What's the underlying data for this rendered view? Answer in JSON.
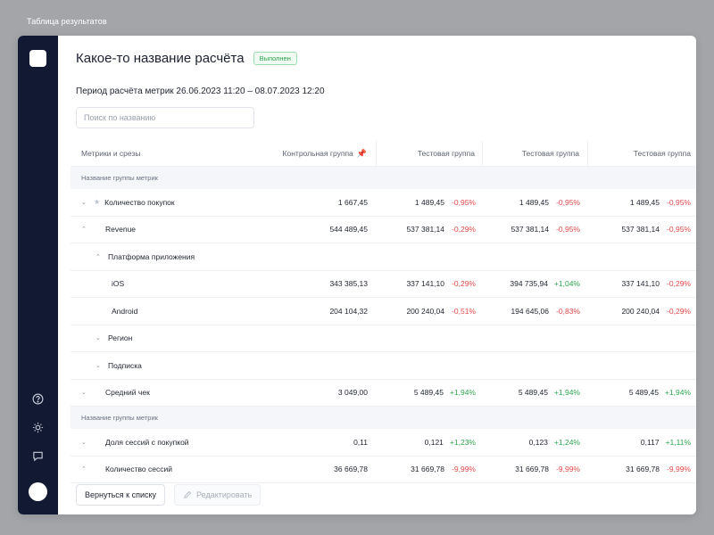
{
  "frame": {
    "caption": "Таблица результатов"
  },
  "page": {
    "title": "Какое-то название расчёта",
    "status": "Выполнен",
    "period": "Период расчёта метрик 26.06.2023 11:20 – 08.07.2023 12:20",
    "search_placeholder": "Поиск по названию"
  },
  "colors": {
    "sidebar": "#121a33",
    "negative": "#e04a4a",
    "positive": "#2ea44f"
  },
  "sidebar": {
    "icons": [
      "help-icon",
      "sun-icon",
      "chat-icon"
    ]
  },
  "table": {
    "headers": {
      "name": "Метрики и срезы",
      "control": "Контрольная группа",
      "test1": "Тестовая группа",
      "test2": "Тестовая группа",
      "test3": "Тестовая группа"
    },
    "groups": [
      {
        "label": "Название группы метрик"
      },
      {
        "label": "Название группы метрик"
      }
    ],
    "rows": [
      {
        "name": "Количество покупок",
        "control": "1 667,45",
        "t1": "1 489,45",
        "t1d": "-0,95%",
        "t2": "1 489,45",
        "t2d": "-0,95%",
        "t3": "1 489,45",
        "t3d": "-0,95%"
      },
      {
        "name": "Revenue",
        "control": "544 489,45",
        "t1": "537 381,14",
        "t1d": "-0,29%",
        "t2": "537 381,14",
        "t2d": "-0,95%",
        "t3": "537 381,14",
        "t3d": "-0,95%"
      },
      {
        "name": "Платформа приложения"
      },
      {
        "name": "iOS",
        "control": "343 385,13",
        "t1": "337 141,10",
        "t1d": "-0,29%",
        "t2": "394 735,94",
        "t2d": "+1,04%",
        "t3": "337 141,10",
        "t3d": "-0,29%"
      },
      {
        "name": "Android",
        "control": "204 104,32",
        "t1": "200 240,04",
        "t1d": "-0,51%",
        "t2": "194 645,06",
        "t2d": "-0,83%",
        "t3": "200 240,04",
        "t3d": "-0,29%"
      },
      {
        "name": "Регион"
      },
      {
        "name": "Подписка"
      },
      {
        "name": "Средний чек",
        "control": "3 049,00",
        "t1": "5 489,45",
        "t1d": "+1,94%",
        "t2": "5 489,45",
        "t2d": "+1,94%",
        "t3": "5 489,45",
        "t3d": "+1,94%"
      },
      {
        "name": "Доля сессий с покупкой",
        "control": "0,11",
        "t1": "0,121",
        "t1d": "+1,23%",
        "t2": "0,123",
        "t2d": "+1,24%",
        "t3": "0,117",
        "t3d": "+1,11%"
      },
      {
        "name": "Количество сессий",
        "control": "36 669,78",
        "t1": "31 669,78",
        "t1d": "-9,99%",
        "t2": "31 669,78",
        "t2d": "-9,99%",
        "t3": "31 669,78",
        "t3d": "-9,99%"
      }
    ]
  },
  "footer": {
    "back": "Вернуться к списку",
    "edit": "Редактировать"
  }
}
